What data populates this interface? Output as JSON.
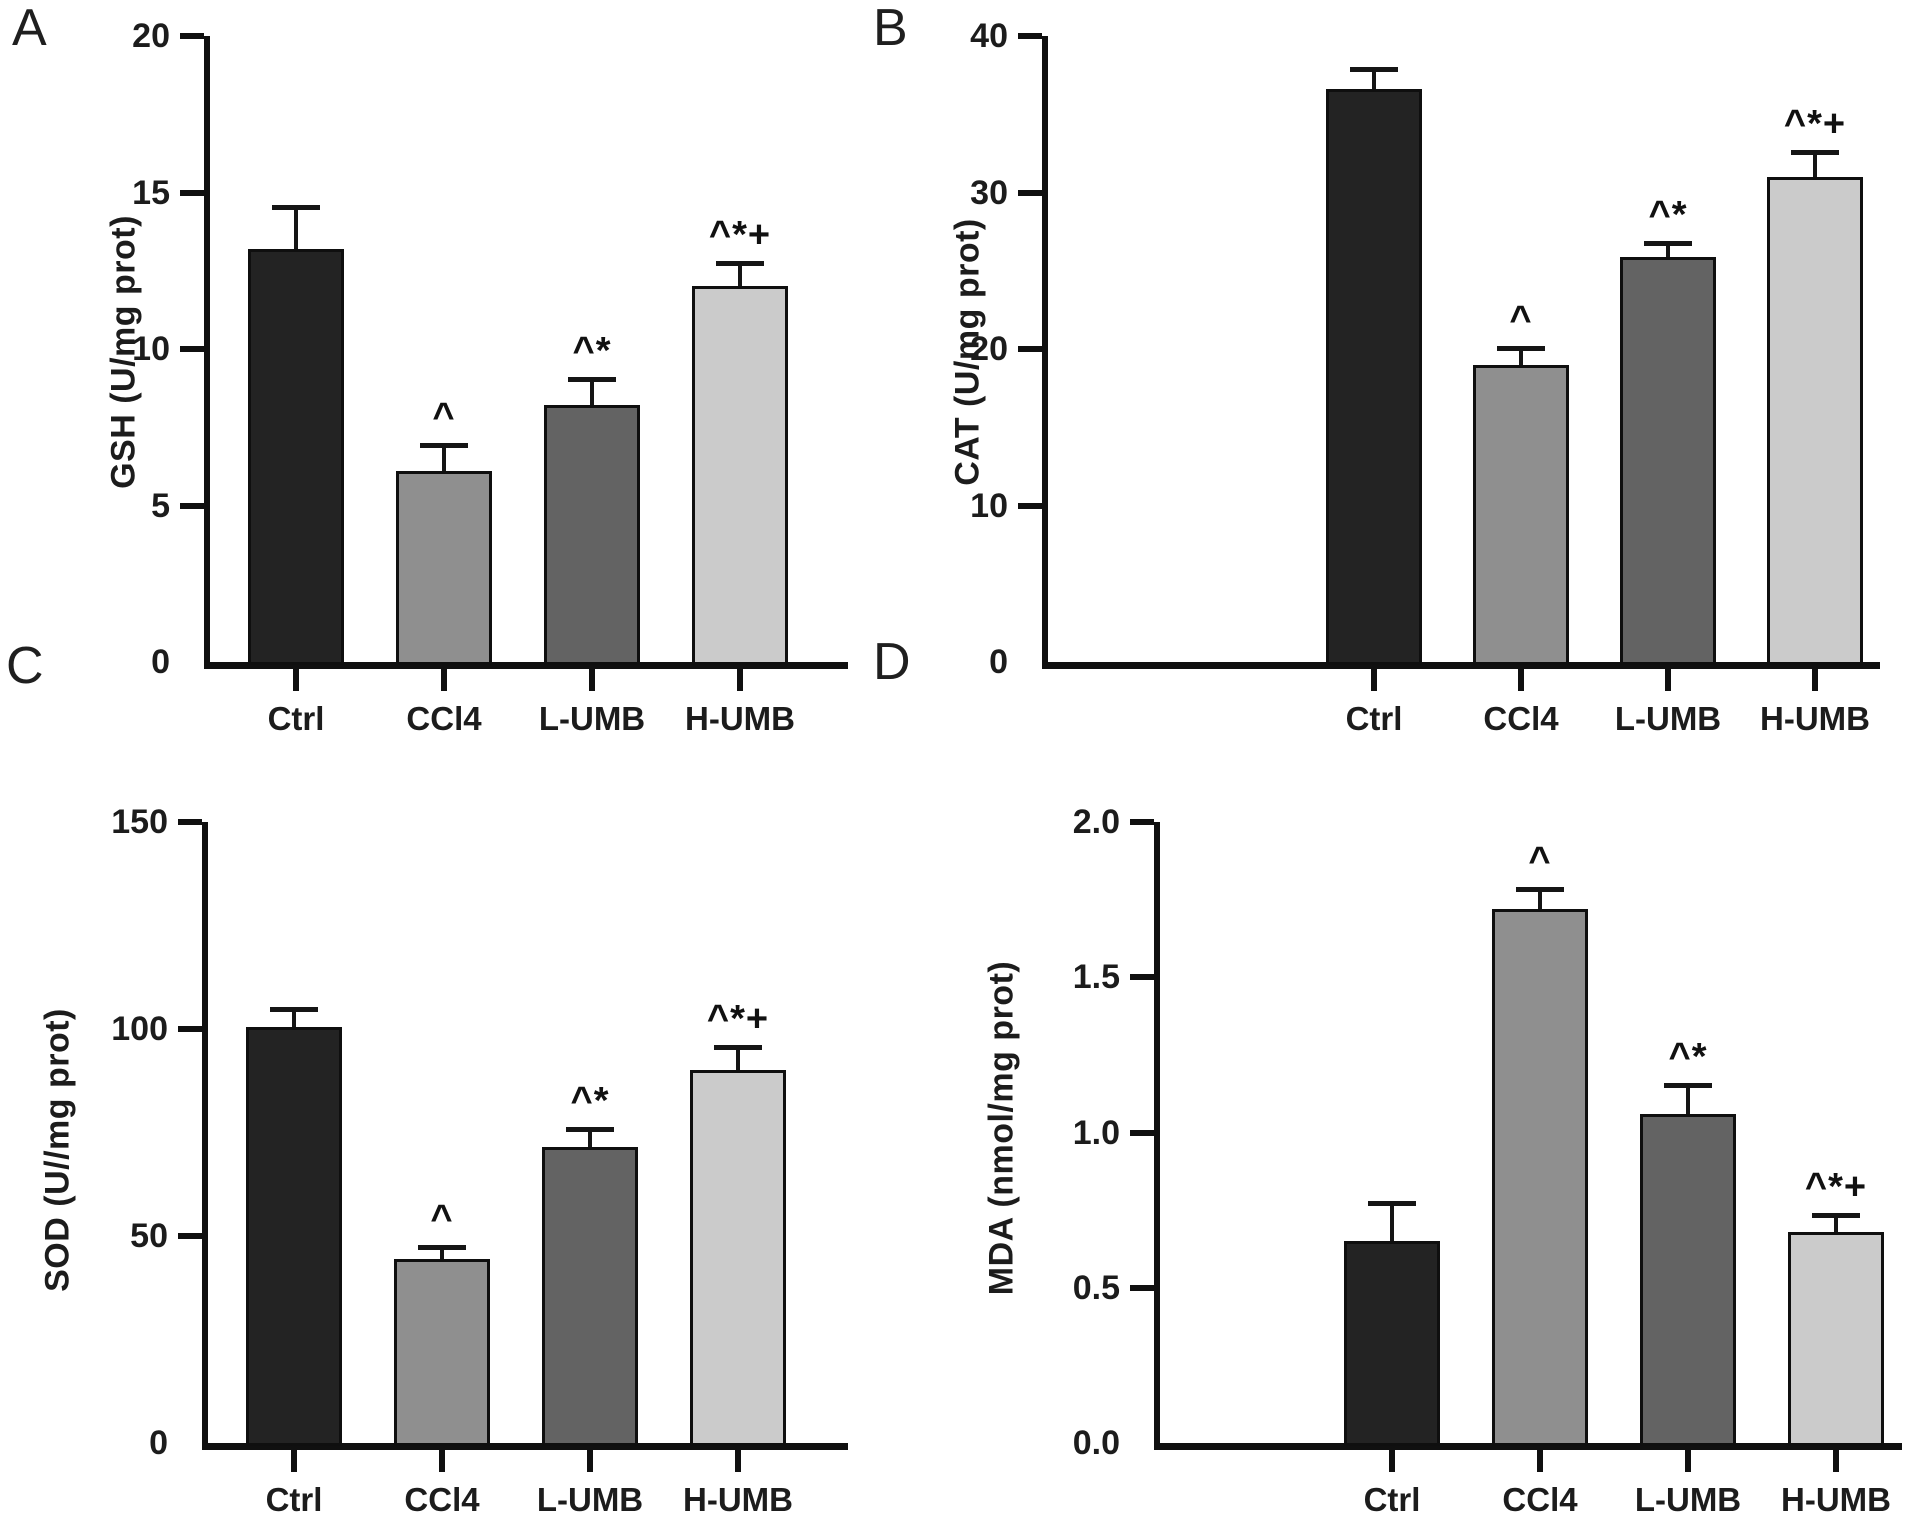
{
  "figure_title": "",
  "chart_data": [
    {
      "panel": "A",
      "type": "bar",
      "ylabel": "GSH (U/mg prot)",
      "xlabel": "",
      "categories": [
        "Ctrl",
        "CCl4",
        "L-UMB",
        "H-UMB"
      ],
      "values": [
        13.2,
        6.1,
        8.2,
        12.0
      ],
      "errors": [
        1.3,
        0.8,
        0.8,
        0.7
      ],
      "annotations": [
        "",
        "^",
        "^*",
        "^*+"
      ],
      "ytick_labels": [
        "0",
        "5",
        "10",
        "15",
        "20"
      ],
      "ylim": [
        0,
        20
      ],
      "bar_colors": [
        "#232323",
        "#8f8f8f",
        "#636363",
        "#cbcbcb"
      ],
      "grid": false,
      "legend": "none"
    },
    {
      "panel": "B",
      "type": "bar",
      "ylabel": "CAT (U/mg prot)",
      "xlabel": "",
      "categories": [
        "Ctrl",
        "CCl4",
        "L-UMB",
        "H-UMB"
      ],
      "values": [
        36.6,
        19.0,
        25.9,
        31.0
      ],
      "errors": [
        1.2,
        1.0,
        0.8,
        1.5
      ],
      "annotations": [
        "",
        "^",
        "^*",
        "^*+"
      ],
      "ytick_labels": [
        "0",
        "10",
        "20",
        "30",
        "40"
      ],
      "ylim": [
        0,
        40
      ],
      "bar_colors": [
        "#232323",
        "#8f8f8f",
        "#636363",
        "#cbcbcb"
      ],
      "grid": false,
      "legend": "none"
    },
    {
      "panel": "C",
      "type": "bar",
      "ylabel": "SOD (U//mg prot)",
      "xlabel": "",
      "categories": [
        "Ctrl",
        "CCl4",
        "L-UMB",
        "H-UMB"
      ],
      "values": [
        100.5,
        44.5,
        71.5,
        90.0
      ],
      "errors": [
        4.0,
        2.5,
        4.0,
        5.5
      ],
      "annotations": [
        "",
        "^",
        "^*",
        "^*+"
      ],
      "ytick_labels": [
        "0",
        "50",
        "100",
        "150"
      ],
      "ylim": [
        0,
        150
      ],
      "bar_colors": [
        "#232323",
        "#8f8f8f",
        "#636363",
        "#cbcbcb"
      ],
      "grid": false,
      "legend": "none"
    },
    {
      "panel": "D",
      "type": "bar",
      "ylabel": "MDA (nmol/mg prot)",
      "xlabel": "",
      "categories": [
        "Ctrl",
        "CCl4",
        "L-UMB",
        "H-UMB"
      ],
      "values": [
        0.65,
        1.72,
        1.06,
        0.68
      ],
      "errors": [
        0.12,
        0.06,
        0.09,
        0.05
      ],
      "annotations": [
        "",
        "^",
        "^*",
        "^*+"
      ],
      "ytick_labels": [
        "0.0",
        "0.5",
        "1.0",
        "1.5",
        "2.0"
      ],
      "ylim": [
        0,
        2.0
      ],
      "bar_colors": [
        "#232323",
        "#8f8f8f",
        "#636363",
        "#cbcbcb"
      ],
      "grid": false,
      "legend": "none"
    }
  ]
}
